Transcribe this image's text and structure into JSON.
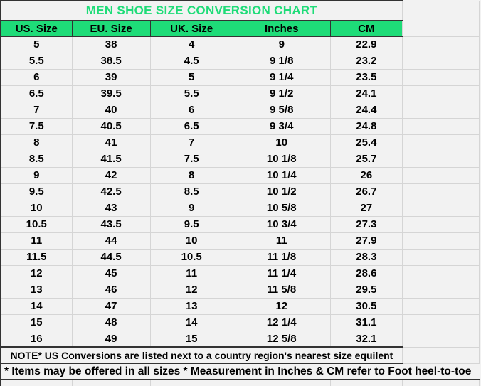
{
  "chart_data": {
    "type": "table",
    "title": "MEN SHOE SIZE CONVERSION CHART",
    "columns": [
      "US. Size",
      "EU. Size",
      "UK. Size",
      "Inches",
      "CM"
    ],
    "rows": [
      [
        "5",
        "38",
        "4",
        "9",
        "22.9"
      ],
      [
        "5.5",
        "38.5",
        "4.5",
        "9 1/8",
        "23.2"
      ],
      [
        "6",
        "39",
        "5",
        "9 1/4",
        "23.5"
      ],
      [
        "6.5",
        "39.5",
        "5.5",
        "9 1/2",
        "24.1"
      ],
      [
        "7",
        "40",
        "6",
        "9 5/8",
        "24.4"
      ],
      [
        "7.5",
        "40.5",
        "6.5",
        "9 3/4",
        "24.8"
      ],
      [
        "8",
        "41",
        "7",
        "10",
        "25.4"
      ],
      [
        "8.5",
        "41.5",
        "7.5",
        "10 1/8",
        "25.7"
      ],
      [
        "9",
        "42",
        "8",
        "10 1/4",
        "26"
      ],
      [
        "9.5",
        "42.5",
        "8.5",
        "10 1/2",
        "26.7"
      ],
      [
        "10",
        "43",
        "9",
        "10 5/8",
        "27"
      ],
      [
        "10.5",
        "43.5",
        "9.5",
        "10 3/4",
        "27.3"
      ],
      [
        "11",
        "44",
        "10",
        "11",
        "27.9"
      ],
      [
        "11.5",
        "44.5",
        "10.5",
        "11 1/8",
        "28.3"
      ],
      [
        "12",
        "45",
        "11",
        "11 1/4",
        "28.6"
      ],
      [
        "13",
        "46",
        "12",
        "11 5/8",
        "29.5"
      ],
      [
        "14",
        "47",
        "13",
        "12",
        "30.5"
      ],
      [
        "15",
        "48",
        "14",
        "12 1/4",
        "31.1"
      ],
      [
        "16",
        "49",
        "15",
        "12 5/8",
        "32.1"
      ]
    ],
    "notes": [
      "NOTE* US Conversions are listed next to a country region's nearest size equilent",
      "* Items may be offered in all sizes * Measurement in Inches & CM refer to Foot heel-to-toe"
    ],
    "layout_hints": {
      "grid": "on",
      "header_fill": "green",
      "empty_right_column": true
    }
  },
  "colors": {
    "header_green": "#1EDC78",
    "title_green": "#1EDC78",
    "cell_bg": "#F2F2F2",
    "gridline": "#D5D5D5",
    "dark_border": "#333333",
    "text": "#000000"
  }
}
